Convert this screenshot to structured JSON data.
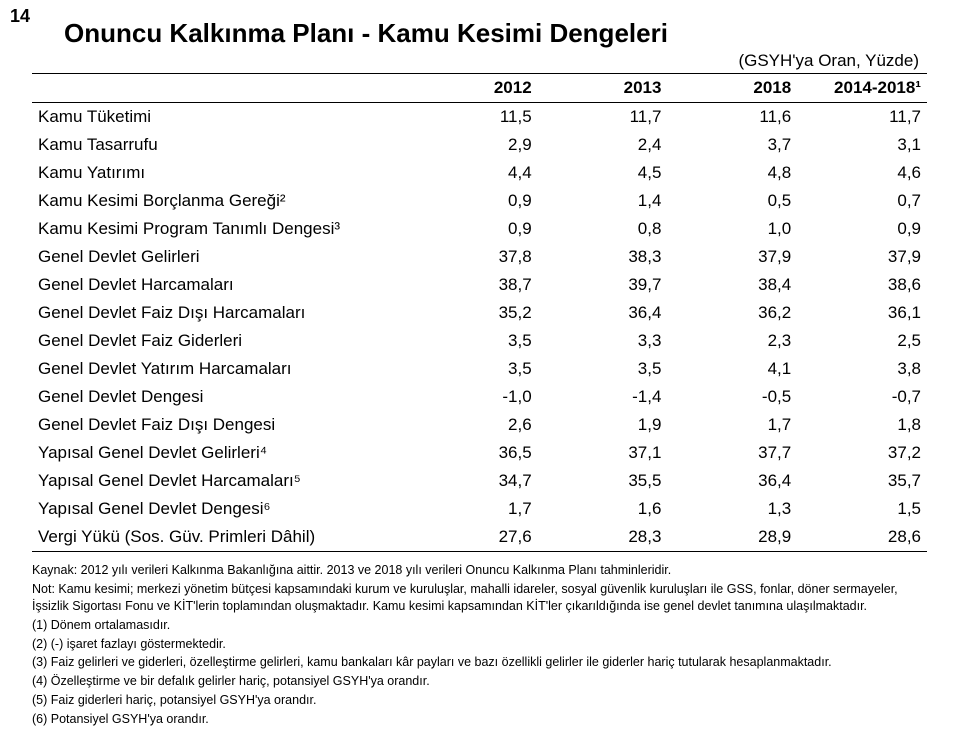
{
  "page_number": "14",
  "title": "Onuncu Kalkınma Planı - Kamu Kesimi Dengeleri",
  "subtitle_right": "(GSYH'ya Oran, Yüzde)",
  "columns": [
    "2012",
    "2013",
    "2018",
    "2014-2018¹"
  ],
  "rows": [
    {
      "label": "Kamu Tüketimi",
      "vals": [
        "11,5",
        "11,7",
        "11,6",
        "11,7"
      ]
    },
    {
      "label": "Kamu Tasarrufu",
      "vals": [
        "2,9",
        "2,4",
        "3,7",
        "3,1"
      ]
    },
    {
      "label": "Kamu Yatırımı",
      "vals": [
        "4,4",
        "4,5",
        "4,8",
        "4,6"
      ]
    },
    {
      "label": "Kamu Kesimi Borçlanma Gereği²",
      "vals": [
        "0,9",
        "1,4",
        "0,5",
        "0,7"
      ]
    },
    {
      "label": "Kamu Kesimi Program Tanımlı Dengesi³",
      "vals": [
        "0,9",
        "0,8",
        "1,0",
        "0,9"
      ]
    },
    {
      "label": "Genel Devlet Gelirleri",
      "vals": [
        "37,8",
        "38,3",
        "37,9",
        "37,9"
      ]
    },
    {
      "label": "Genel Devlet Harcamaları",
      "vals": [
        "38,7",
        "39,7",
        "38,4",
        "38,6"
      ]
    },
    {
      "label": "Genel Devlet Faiz Dışı Harcamaları",
      "vals": [
        "35,2",
        "36,4",
        "36,2",
        "36,1"
      ]
    },
    {
      "label": "Genel Devlet Faiz Giderleri",
      "vals": [
        "3,5",
        "3,3",
        "2,3",
        "2,5"
      ]
    },
    {
      "label": "Genel Devlet Yatırım Harcamaları",
      "vals": [
        "3,5",
        "3,5",
        "4,1",
        "3,8"
      ]
    },
    {
      "label": "Genel Devlet Dengesi",
      "vals": [
        "-1,0",
        "-1,4",
        "-0,5",
        "-0,7"
      ]
    },
    {
      "label": "Genel Devlet Faiz Dışı Dengesi",
      "vals": [
        "2,6",
        "1,9",
        "1,7",
        "1,8"
      ]
    },
    {
      "label": "Yapısal Genel Devlet Gelirleri⁴",
      "vals": [
        "36,5",
        "37,1",
        "37,7",
        "37,2"
      ]
    },
    {
      "label": "Yapısal Genel Devlet Harcamaları⁵",
      "vals": [
        "34,7",
        "35,5",
        "36,4",
        "35,7"
      ]
    },
    {
      "label": "Yapısal Genel Devlet Dengesi⁶",
      "vals": [
        "1,7",
        "1,6",
        "1,3",
        "1,5"
      ]
    },
    {
      "label": "Vergi Yükü (Sos. Güv. Primleri Dâhil)",
      "vals": [
        "27,6",
        "28,3",
        "28,9",
        "28,6"
      ]
    }
  ],
  "notes": [
    "Kaynak: 2012 yılı verileri Kalkınma Bakanlığına aittir. 2013 ve 2018 yılı verileri Onuncu Kalkınma Planı tahminleridir.",
    "Not: Kamu kesimi; merkezi yönetim bütçesi kapsamındaki kurum ve kuruluşlar, mahalli idareler, sosyal güvenlik kuruluşları ile GSS, fonlar, döner sermayeler, İşsizlik Sigortası Fonu ve KİT'lerin toplamından oluşmaktadır. Kamu kesimi kapsamından KİT'ler çıkarıldığında ise genel devlet tanımına ulaşılmaktadır.",
    "(1) Dönem ortalamasıdır.",
    "(2) (-) işaret fazlayı göstermektedir.",
    "(3) Faiz gelirleri ve giderleri, özelleştirme gelirleri, kamu bankaları kâr payları ve bazı özellikli gelirler ile giderler hariç tutularak hesaplanmaktadır.",
    "(4) Özelleştirme ve bir defalık gelirler hariç, potansiyel GSYH'ya orandır.",
    "(5) Faiz giderleri hariç, potansiyel GSYH'ya orandır.",
    "(6) Potansiyel GSYH'ya orandır."
  ]
}
